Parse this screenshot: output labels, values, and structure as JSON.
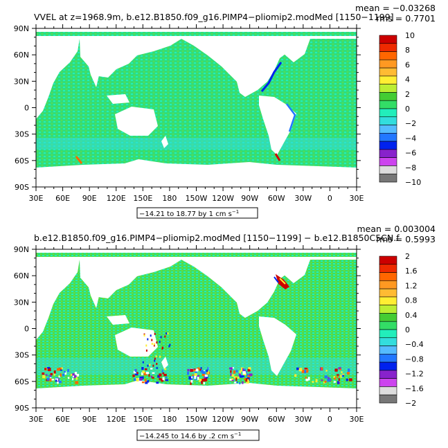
{
  "chart_data": [
    {
      "type": "heatmap",
      "title": "VVEL at z=1968.9m, b.e12.B1850.f09_g16.PIMP4−pliomip2.modMed [1150−1199]",
      "stats": {
        "mean": "mean = −0.03268",
        "rms": "rms = 0.7701"
      },
      "range_label": "−14.21 to 18.77 by 1 cm s",
      "range_unit_exp": "−1",
      "x_ticks": [
        "30E",
        "60E",
        "90E",
        "120E",
        "150E",
        "180",
        "150W",
        "120W",
        "90W",
        "60W",
        "30W",
        "0",
        "30E"
      ],
      "y_ticks": [
        "90N",
        "60N",
        "30N",
        "0",
        "30S",
        "60S",
        "90S"
      ],
      "colorbar": {
        "labels": [
          "10",
          "8",
          "6",
          "4",
          "2",
          "0",
          "−2",
          "−4",
          "−6",
          "−8",
          "−10"
        ],
        "colors": [
          "#cc0000",
          "#ee2a00",
          "#ff6600",
          "#ff9922",
          "#ffbb33",
          "#ffee33",
          "#bbee33",
          "#44cc33",
          "#33dd66",
          "#22eebb",
          "#33dddd",
          "#55bbff",
          "#2277ff",
          "#0022ee",
          "#8822cc",
          "#cc44ee",
          "#dddddd",
          "#777777"
        ]
      }
    },
    {
      "type": "heatmap",
      "title": "b.e12.B1850.f09_g16.PIMP4−pliomip2.modMed [1150−1199] − b.e12.B1850C5CN.f",
      "stats": {
        "mean": "mean = 0.003004",
        "rms": "rms = 0.5993"
      },
      "range_label": "−14.245 to 14.6 by .2 cm s",
      "range_unit_exp": "−1",
      "x_ticks": [
        "30E",
        "60E",
        "90E",
        "120E",
        "150E",
        "180",
        "150W",
        "120W",
        "90W",
        "60W",
        "30W",
        "0",
        "30E"
      ],
      "y_ticks": [
        "90N",
        "60N",
        "30N",
        "0",
        "30S",
        "60S",
        "90S"
      ],
      "colorbar": {
        "labels": [
          "2",
          "1.6",
          "1.2",
          "0.8",
          "0.4",
          "0",
          "−0.4",
          "−0.8",
          "−1.2",
          "−1.6",
          "−2"
        ],
        "colors": [
          "#cc0000",
          "#ee2a00",
          "#ff6600",
          "#ff9922",
          "#ffbb33",
          "#ffee33",
          "#bbee33",
          "#44cc33",
          "#33dd66",
          "#22eebb",
          "#33dddd",
          "#55bbff",
          "#2277ff",
          "#0022ee",
          "#8822cc",
          "#cc44ee",
          "#dddddd",
          "#777777"
        ]
      }
    }
  ]
}
